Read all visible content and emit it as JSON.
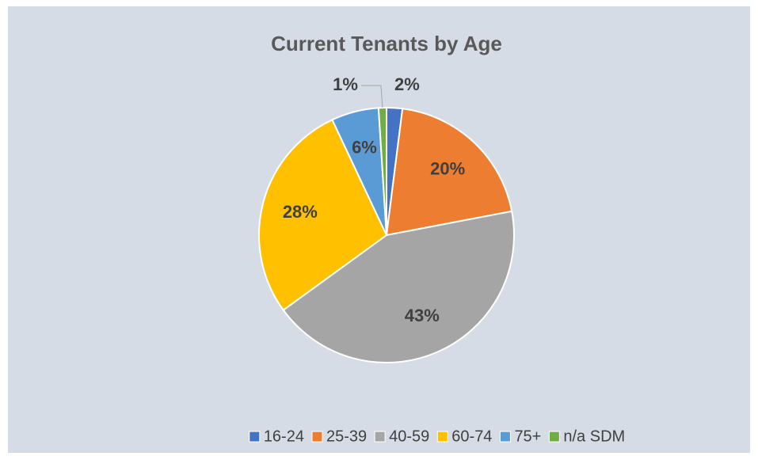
{
  "chart_data": {
    "type": "pie",
    "title": "Current Tenants by Age",
    "categories": [
      "16-24",
      "25-39",
      "40-59",
      "60-74",
      "75+",
      "n/a SDM"
    ],
    "values": [
      2,
      20,
      43,
      28,
      6,
      1
    ],
    "value_labels": [
      "2%",
      "20%",
      "43%",
      "28%",
      "6%",
      "1%"
    ],
    "colors": [
      "#4472c4",
      "#ed7d31",
      "#a5a5a5",
      "#ffc000",
      "#5b9bd5",
      "#70ad47"
    ],
    "legend": "bottom"
  }
}
